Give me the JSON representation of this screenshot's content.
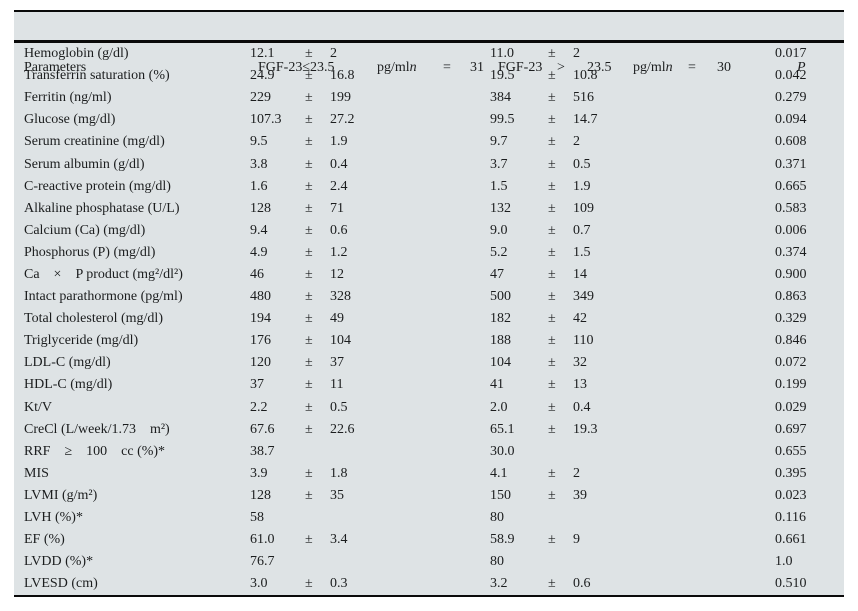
{
  "colors": {
    "table_background": "#dee3e5",
    "rule": "#0a0a0a",
    "text": "#1b1d1e",
    "page_background": "#ffffff"
  },
  "table": {
    "header": {
      "parameters": "Parameters",
      "group1": {
        "label": "FGF-23≤23.5",
        "unit": "pg/ml",
        "n": "n",
        "eq": "=",
        "count": "31"
      },
      "group2": {
        "label": "FGF-23",
        "comparator": ">",
        "threshold": "23.5",
        "unit": "pg/ml",
        "n": "n",
        "eq": "=",
        "count": "30"
      },
      "p": "P"
    },
    "rows": [
      {
        "param": "Hemoglobin (g/dl)",
        "m1": "12.1",
        "pm1": "±",
        "sd1": "2",
        "m2": "11.0",
        "pm2": "±",
        "sd2": "2",
        "p": "0.017"
      },
      {
        "param": "Transferrin saturation (%)",
        "m1": "24.9",
        "pm1": "±",
        "sd1": "16.8",
        "m2": "19.5",
        "pm2": "±",
        "sd2": "10.8",
        "p": "0.042"
      },
      {
        "param": "Ferritin (ng/ml)",
        "m1": "229",
        "pm1": "±",
        "sd1": "199",
        "m2": "384",
        "pm2": "±",
        "sd2": "516",
        "p": "0.279"
      },
      {
        "param": "Glucose (mg/dl)",
        "m1": "107.3",
        "pm1": "±",
        "sd1": "27.2",
        "m2": "99.5",
        "pm2": "±",
        "sd2": "14.7",
        "p": "0.094"
      },
      {
        "param": "Serum creatinine (mg/dl)",
        "m1": "9.5",
        "pm1": "±",
        "sd1": "1.9",
        "m2": "9.7",
        "pm2": "±",
        "sd2": "2",
        "p": "0.608"
      },
      {
        "param": "Serum albumin (g/dl)",
        "m1": "3.8",
        "pm1": "±",
        "sd1": "0.4",
        "m2": "3.7",
        "pm2": "±",
        "sd2": "0.5",
        "p": "0.371"
      },
      {
        "param": "C-reactive protein (mg/dl)",
        "m1": "1.6",
        "pm1": "±",
        "sd1": "2.4",
        "m2": "1.5",
        "pm2": "±",
        "sd2": "1.9",
        "p": "0.665"
      },
      {
        "param": "Alkaline phosphatase (U/L)",
        "m1": "128",
        "pm1": "±",
        "sd1": "71",
        "m2": "132",
        "pm2": "±",
        "sd2": "109",
        "p": "0.583"
      },
      {
        "param": "Calcium (Ca) (mg/dl)",
        "m1": "9.4",
        "pm1": "±",
        "sd1": "0.6",
        "m2": "9.0",
        "pm2": "±",
        "sd2": "0.7",
        "p": "0.006"
      },
      {
        "param": "Phosphorus (P) (mg/dl)",
        "m1": "4.9",
        "pm1": "±",
        "sd1": "1.2",
        "m2": "5.2",
        "pm2": "±",
        "sd2": "1.5",
        "p": "0.374"
      },
      {
        "param": "Ca    ×    P product (mg²/dl²)",
        "m1": "46",
        "pm1": "±",
        "sd1": "12",
        "m2": "47",
        "pm2": "±",
        "sd2": "14",
        "p": "0.900"
      },
      {
        "param": "Intact parathormone (pg/ml)",
        "m1": "480",
        "pm1": "±",
        "sd1": "328",
        "m2": "500",
        "pm2": "±",
        "sd2": "349",
        "p": "0.863"
      },
      {
        "param": "Total cholesterol (mg/dl)",
        "m1": "194",
        "pm1": "±",
        "sd1": "49",
        "m2": "182",
        "pm2": "±",
        "sd2": "42",
        "p": "0.329"
      },
      {
        "param": "Triglyceride (mg/dl)",
        "m1": "176",
        "pm1": "±",
        "sd1": "104",
        "m2": "188",
        "pm2": "±",
        "sd2": "110",
        "p": "0.846"
      },
      {
        "param": "LDL-C (mg/dl)",
        "m1": "120",
        "pm1": "±",
        "sd1": "37",
        "m2": "104",
        "pm2": "±",
        "sd2": "32",
        "p": "0.072"
      },
      {
        "param": "HDL-C (mg/dl)",
        "m1": "37",
        "pm1": "±",
        "sd1": "11",
        "m2": "41",
        "pm2": "±",
        "sd2": "13",
        "p": "0.199"
      },
      {
        "param": "Kt/V",
        "m1": "2.2",
        "pm1": "±",
        "sd1": "0.5",
        "m2": "2.0",
        "pm2": "±",
        "sd2": "0.4",
        "p": "0.029"
      },
      {
        "param": "CreCl (L/week/1.73    m²)",
        "m1": "67.6",
        "pm1": "±",
        "sd1": "22.6",
        "m2": "65.1",
        "pm2": "±",
        "sd2": "19.3",
        "p": "0.697"
      },
      {
        "param": "RRF    ≥    100    cc (%)*",
        "m1": "38.7",
        "pm1": "",
        "sd1": "",
        "m2": "30.0",
        "pm2": "",
        "sd2": "",
        "p": "0.655"
      },
      {
        "param": "MIS",
        "m1": "3.9",
        "pm1": "±",
        "sd1": "1.8",
        "m2": "4.1",
        "pm2": "±",
        "sd2": "2",
        "p": "0.395"
      },
      {
        "param": "LVMI (g/m²)",
        "m1": "128",
        "pm1": "±",
        "sd1": "35",
        "m2": "150",
        "pm2": "±",
        "sd2": "39",
        "p": "0.023"
      },
      {
        "param": "LVH (%)*",
        "m1": "58",
        "pm1": "",
        "sd1": "",
        "m2": "80",
        "pm2": "",
        "sd2": "",
        "p": "0.116"
      },
      {
        "param": "EF (%)",
        "m1": "61.0",
        "pm1": "±",
        "sd1": "3.4",
        "m2": "58.9",
        "pm2": "±",
        "sd2": "9",
        "p": "0.661"
      },
      {
        "param": "LVDD (%)*",
        "m1": "76.7",
        "pm1": "",
        "sd1": "",
        "m2": "80",
        "pm2": "",
        "sd2": "",
        "p": "1.0"
      },
      {
        "param": "LVESD (cm)",
        "m1": "3.0",
        "pm1": "±",
        "sd1": "0.3",
        "m2": "3.2",
        "pm2": "±",
        "sd2": "0.6",
        "p": "0.510"
      }
    ]
  }
}
